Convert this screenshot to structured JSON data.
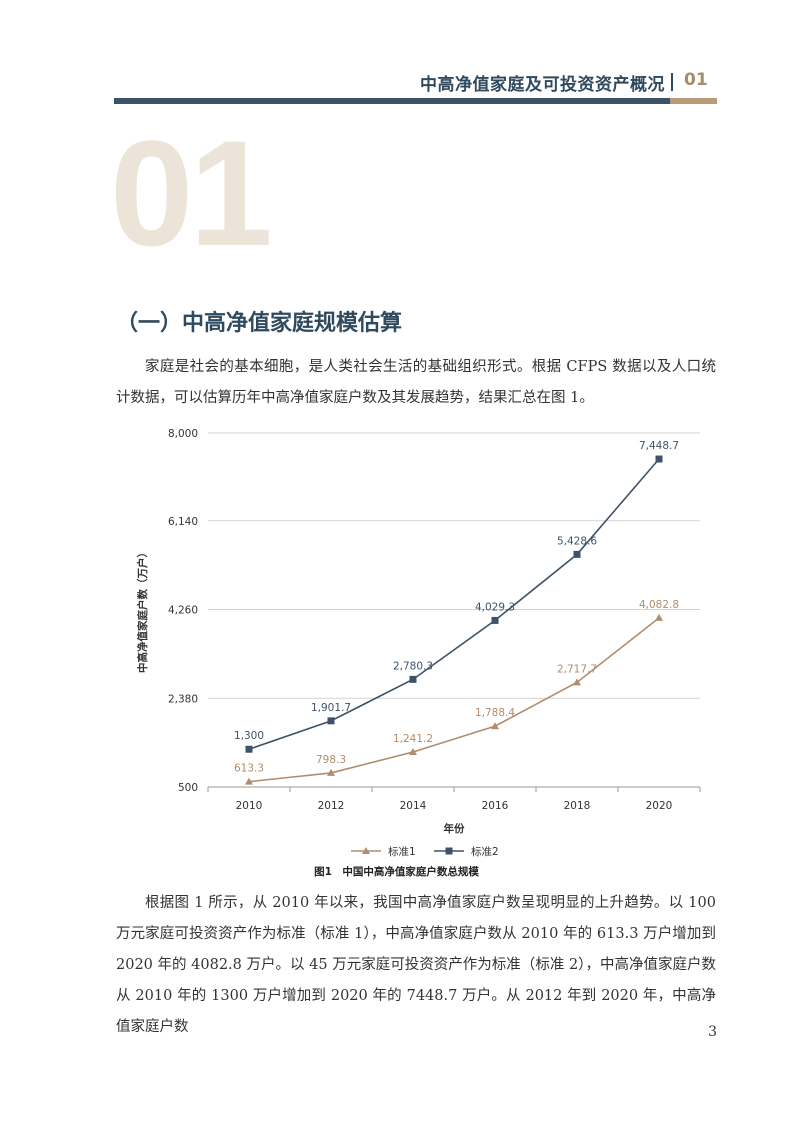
{
  "header": {
    "title": "中高净值家庭及可投资资产概况",
    "chapter_number": "01"
  },
  "chapter_big_number": "01",
  "section_heading": "（一）中高净值家庭规模估算",
  "paragraphs": [
    "家庭是社会的基本细胞，是人类社会生活的基础组织形式。根据 CFPS 数据以及人口统计数据，可以估算历年中高净值家庭户数及其发展趋势，结果汇总在图 1。",
    "根据图 1 所示，从 2010 年以来，我国中高净值家庭户数呈现明显的上升趋势。以 100 万元家庭可投资资产作为标准（标准 1），中高净值家庭户数从 2010 年的 613.3 万户增加到 2020 年的 4082.8 万户。以 45 万元家庭可投资资产作为标准（标准 2），中高净值家庭户数从 2010 年的 1300 万户增加到 2020 年的 7448.7 万户。从 2012 年到 2020 年，中高净值家庭户数"
  ],
  "figure_caption": "图1　中国中高净值家庭户数总规模",
  "page_number": "3",
  "colors": {
    "primary": "#2f4a5e",
    "accent": "#b99b78",
    "series_1": "#b08d6d",
    "series_2": "#3e5369"
  },
  "chart_data": {
    "type": "line",
    "x": [
      2010,
      2012,
      2014,
      2016,
      2018,
      2020
    ],
    "xlabel": "年份",
    "ylabel": "中高净值家庭户数（万户）",
    "ylim": [
      500,
      8000
    ],
    "yticks": [
      500,
      2380,
      4260,
      6140,
      8000
    ],
    "ytick_labels": [
      "500",
      "2,380",
      "4,260",
      "6,140",
      "8,000"
    ],
    "grid": true,
    "legend_position": "bottom-center",
    "series": [
      {
        "name": "标准1",
        "marker": "triangle",
        "values": [
          613.3,
          798.3,
          1241.2,
          1788.4,
          2717.7,
          4082.8
        ],
        "labels": [
          "613.3",
          "798.3",
          "1,241.2",
          "1,788.4",
          "2,717.7",
          "4,082.8"
        ]
      },
      {
        "name": "标准2",
        "marker": "square",
        "values": [
          1300,
          1901.7,
          2780.3,
          4029.3,
          5428.6,
          7448.7
        ],
        "labels": [
          "1,300",
          "1,901.7",
          "2,780.3",
          "4,029.3",
          "5,428.6",
          "7,448.7"
        ]
      }
    ]
  }
}
